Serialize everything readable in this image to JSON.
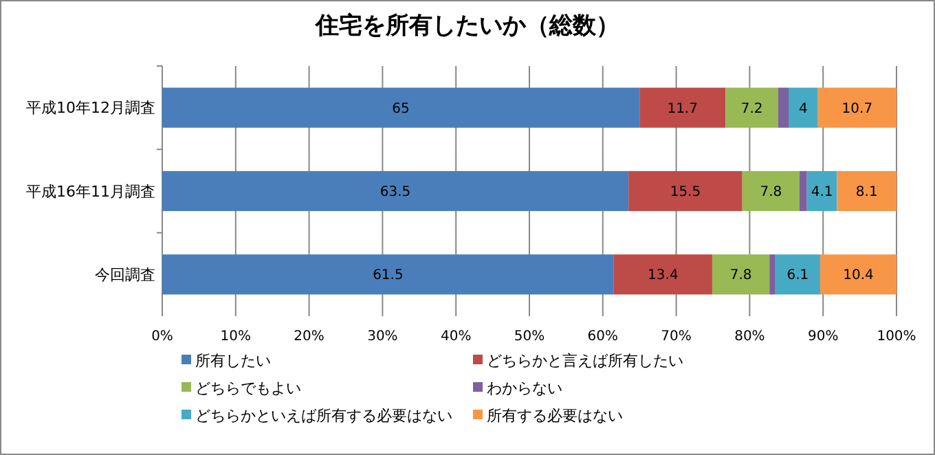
{
  "chart_data": {
    "type": "bar",
    "orientation": "horizontal",
    "stacked": true,
    "title": "住宅を所有したいか（総数）",
    "categories": [
      "平成10年12月調査",
      "平成16年11月調査",
      "今回調査"
    ],
    "series": [
      {
        "name": "所有したい",
        "color": "#4a7ebb",
        "values": [
          65,
          63.5,
          61.5
        ],
        "value_labels": [
          "65",
          "63.5",
          "61.5"
        ]
      },
      {
        "name": "どちらかと言えば所有したい",
        "color": "#be4b48",
        "values": [
          11.7,
          15.5,
          13.4
        ],
        "value_labels": [
          "11.7",
          "15.5",
          "13.4"
        ]
      },
      {
        "name": "どちらでもよい",
        "color": "#98b954",
        "values": [
          7.2,
          7.8,
          7.8
        ],
        "value_labels": [
          "7.2",
          "7.8",
          "7.8"
        ]
      },
      {
        "name": "わからない",
        "color": "#7d60a0",
        "values": [
          1.4,
          1.0,
          0.8
        ],
        "value_labels": [
          null,
          null,
          null
        ]
      },
      {
        "name": "どちらかといえば所有する必要はない",
        "color": "#46aac5",
        "values": [
          4,
          4.1,
          6.1
        ],
        "value_labels": [
          "4",
          "4.1",
          "6.1"
        ]
      },
      {
        "name": "所有する必要はない",
        "color": "#f79646",
        "values": [
          10.7,
          8.1,
          10.4
        ],
        "value_labels": [
          "10.7",
          "8.1",
          "10.4"
        ]
      }
    ],
    "xlim": [
      0,
      100
    ],
    "xticks": [
      {
        "value": 0,
        "label": "0%"
      },
      {
        "value": 10,
        "label": "10%"
      },
      {
        "value": 20,
        "label": "20%"
      },
      {
        "value": 30,
        "label": "30%"
      },
      {
        "value": 40,
        "label": "40%"
      },
      {
        "value": 50,
        "label": "50%"
      },
      {
        "value": 60,
        "label": "60%"
      },
      {
        "value": 70,
        "label": "70%"
      },
      {
        "value": 80,
        "label": "80%"
      },
      {
        "value": 90,
        "label": "90%"
      },
      {
        "value": 100,
        "label": "100%"
      }
    ],
    "grid": "x",
    "legend": "bottom"
  }
}
